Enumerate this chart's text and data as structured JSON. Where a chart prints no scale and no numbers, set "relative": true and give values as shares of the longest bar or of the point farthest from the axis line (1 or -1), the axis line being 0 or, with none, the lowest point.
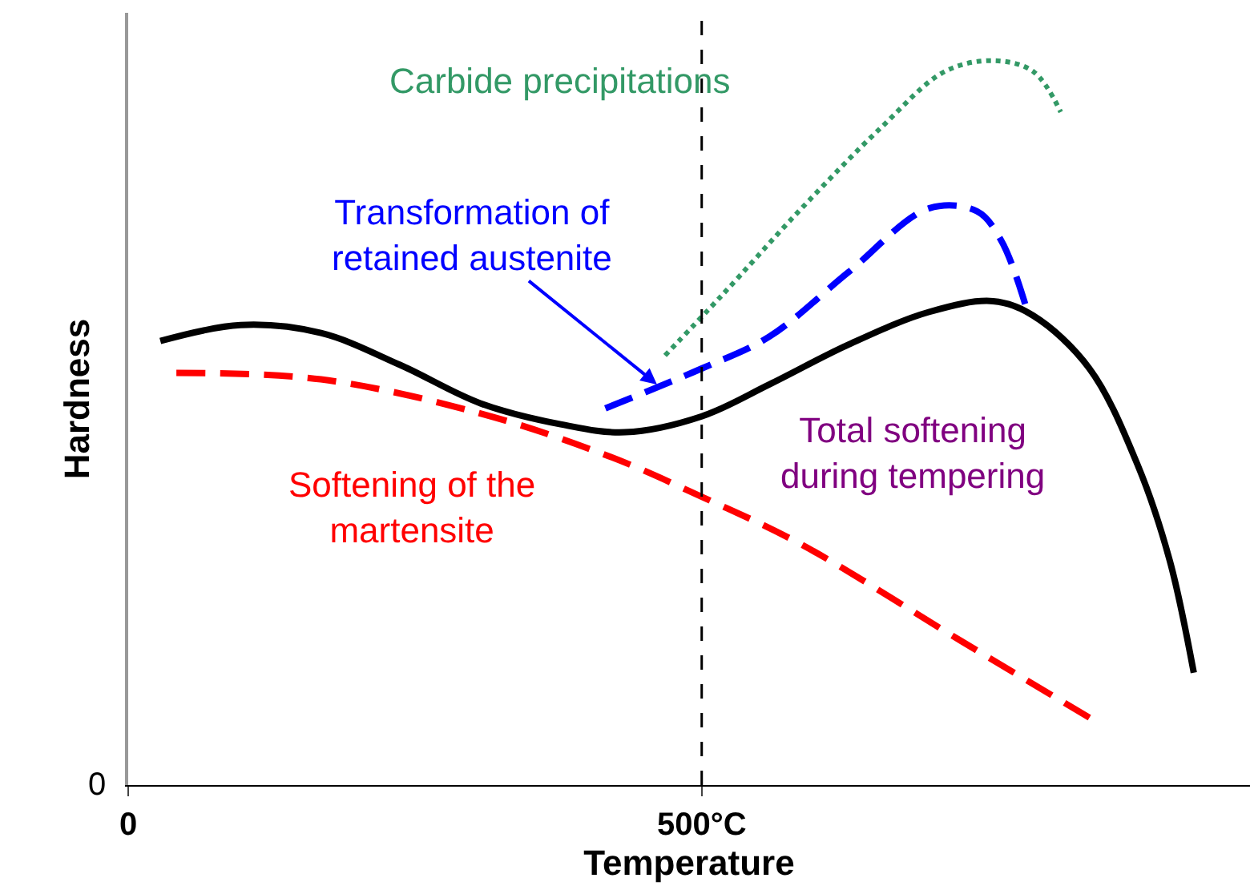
{
  "chart_data": {
    "type": "line",
    "relative": true,
    "xlabel": "Temperature",
    "ylabel": "Hardness",
    "xlim": [
      0,
      978
    ],
    "xticks": [
      0,
      {
        "value": 500,
        "label": "500°C"
      }
    ],
    "annotations": [
      "0"
    ],
    "grid": false,
    "legend": false,
    "ref_lines": [
      {
        "axis": "x",
        "value": 500,
        "color": "#000000",
        "line_style": "dashed"
      }
    ],
    "series": [
      {
        "name": "Total softening during tempering",
        "color": "#000000",
        "line_style": "solid",
        "x": [
          28,
          98,
          168,
          237,
          307,
          377,
          433,
          500,
          559,
          628,
          698,
          754,
          789,
          838,
          880,
          908,
          929
        ],
        "values": [
          0.613,
          0.635,
          0.624,
          0.58,
          0.527,
          0.498,
          0.487,
          0.509,
          0.553,
          0.608,
          0.653,
          0.668,
          0.648,
          0.575,
          0.442,
          0.31,
          0.155
        ]
      },
      {
        "name": "Softening of the martensite",
        "color": "#ff0000",
        "line_style": "dashed",
        "x": [
          42,
          168,
          307,
          419,
          500,
          587,
          726,
          838
        ],
        "values": [
          0.569,
          0.56,
          0.513,
          0.454,
          0.398,
          0.332,
          0.199,
          0.093
        ]
      },
      {
        "name": "Transformation of retained austenite",
        "color": "#0000ff",
        "line_style": "dashed",
        "x": [
          416,
          500,
          559,
          628,
          698,
          740,
          761,
          782
        ],
        "values": [
          0.52,
          0.575,
          0.619,
          0.708,
          0.796,
          0.792,
          0.752,
          0.664
        ]
      },
      {
        "name": "Carbide precipitations",
        "color": "#339966",
        "line_style": "dotted",
        "x": [
          468,
          517,
          587,
          656,
          712,
          754,
          789,
          813
        ],
        "values": [
          0.593,
          0.675,
          0.796,
          0.907,
          0.985,
          1.0,
          0.985,
          0.929
        ]
      }
    ]
  }
}
